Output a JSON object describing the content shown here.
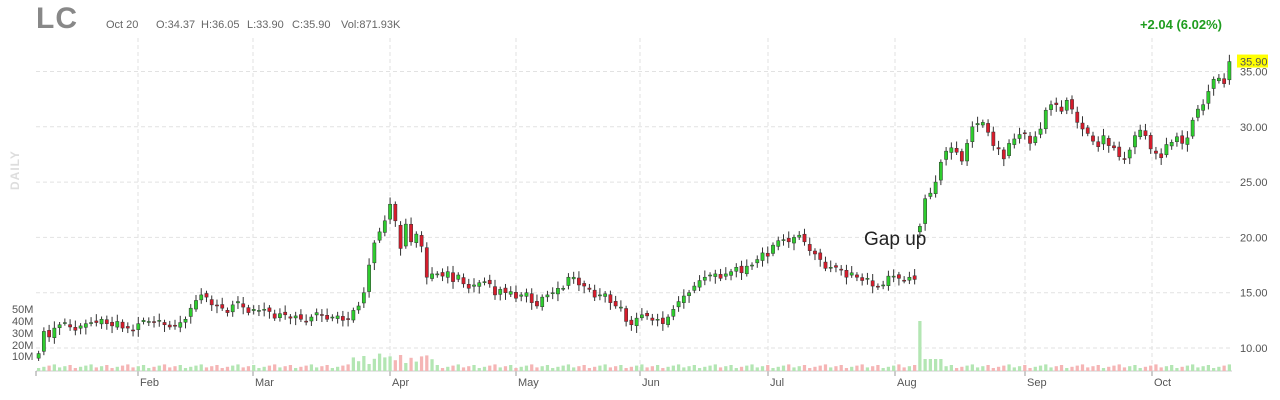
{
  "header": {
    "ticker": "LC",
    "date": "Oct 20",
    "open": "O:34.37",
    "high": "H:36.05",
    "low": "L:33.90",
    "close": "C:35.90",
    "volume": "Vol:871.93K",
    "change": "+2.04 (6.02%)",
    "period_label": "DAILY"
  },
  "chart_data": {
    "type": "candlestick",
    "x_tick_labels": [
      "Feb",
      "Mar",
      "Apr",
      "May",
      "Jun",
      "Jul",
      "Aug",
      "Sep",
      "Oct"
    ],
    "y_tick_labels": [
      "35.00",
      "30.00",
      "25.00",
      "20.00",
      "15.00",
      "10.00"
    ],
    "ylim": [
      8,
      38
    ],
    "volume_tick_labels": [
      "50M",
      "40M",
      "30M",
      "20M",
      "10M"
    ],
    "last_price_label": "35.90",
    "annotation": "Gap up",
    "colors": {
      "up": "#2ecc2e",
      "down": "#d61c2c",
      "up_volume": "#b3e6b3",
      "down_volume": "#f5b5b5",
      "last_price_bg": "#ffff00"
    },
    "series": [
      {
        "name": "",
        "close": [
          9.5,
          11.5,
          11.0,
          11.8,
          12.1,
          12.3,
          11.9,
          11.6,
          12.0,
          12.2,
          12.3,
          12.3,
          12.6,
          12.2,
          12.0,
          12.4,
          11.8,
          11.8,
          11.6,
          12.2,
          12.5,
          12.4,
          12.3,
          12.5,
          12.1,
          11.9,
          12.0,
          12.3,
          12.6,
          13.6,
          14.3,
          14.8,
          14.6,
          13.9,
          13.8,
          13.6,
          13.2,
          13.9,
          14.2,
          13.7,
          13.2,
          13.5,
          13.4,
          13.5,
          13.3,
          12.7,
          13.1,
          13.0,
          12.7,
          12.9,
          12.6,
          12.4,
          12.8,
          13.2,
          13.0,
          12.6,
          12.8,
          12.9,
          12.5,
          12.6,
          13.4,
          13.8,
          15.0,
          17.5,
          19.5,
          20.5,
          21.5,
          23.0,
          21.5,
          19.0,
          21.2,
          19.6,
          20.3,
          19.2,
          16.4,
          16.7,
          16.7,
          16.5,
          16.9,
          16.0,
          16.6,
          15.8,
          15.4,
          15.7,
          15.9,
          16.0,
          15.8,
          14.8,
          15.3,
          15.0,
          15.1,
          14.5,
          14.8,
          15.0,
          14.1,
          13.8,
          14.6,
          14.8,
          15.0,
          15.4,
          15.4,
          16.4,
          16.4,
          15.7,
          15.6,
          15.3,
          14.6,
          14.8,
          14.9,
          14.1,
          13.8,
          13.7,
          12.4,
          12.1,
          12.7,
          13.0,
          12.9,
          12.5,
          12.6,
          12.2,
          12.8,
          13.5,
          14.2,
          14.7,
          15.0,
          15.6,
          16.1,
          16.4,
          16.6,
          16.7,
          16.3,
          16.7,
          16.9,
          17.3,
          16.8,
          17.4,
          17.5,
          18.0,
          18.6,
          18.3,
          19.3,
          19.7,
          19.8,
          19.6,
          20.0,
          20.2,
          19.6,
          18.8,
          18.5,
          18.0,
          17.2,
          17.3,
          17.3,
          17.1,
          16.4,
          16.8,
          16.4,
          16.1,
          16.3,
          15.6,
          15.5,
          15.7,
          16.5,
          16.5,
          16.3,
          16.1,
          16.4,
          16.2,
          21.0,
          23.5,
          24.0,
          25.0,
          26.8,
          27.8,
          28.1,
          27.7,
          26.9,
          28.5,
          30.0,
          30.3,
          30.4,
          29.5,
          28.3,
          28.0,
          27.1,
          28.5,
          28.9,
          29.3,
          29.4,
          28.5,
          29.1,
          29.8,
          31.5,
          32.0,
          32.0,
          31.4,
          32.4,
          31.6,
          30.4,
          29.8,
          29.4,
          28.7,
          28.2,
          29.2,
          28.3,
          28.1,
          27.3,
          27.1,
          27.9,
          29.2,
          29.7,
          29.2,
          28.0,
          27.6,
          27.2,
          28.4,
          28.6,
          29.1,
          28.5,
          29.0,
          30.6,
          31.6,
          32.0,
          33.2,
          34.3,
          34.4,
          33.9,
          35.9
        ]
      }
    ]
  }
}
